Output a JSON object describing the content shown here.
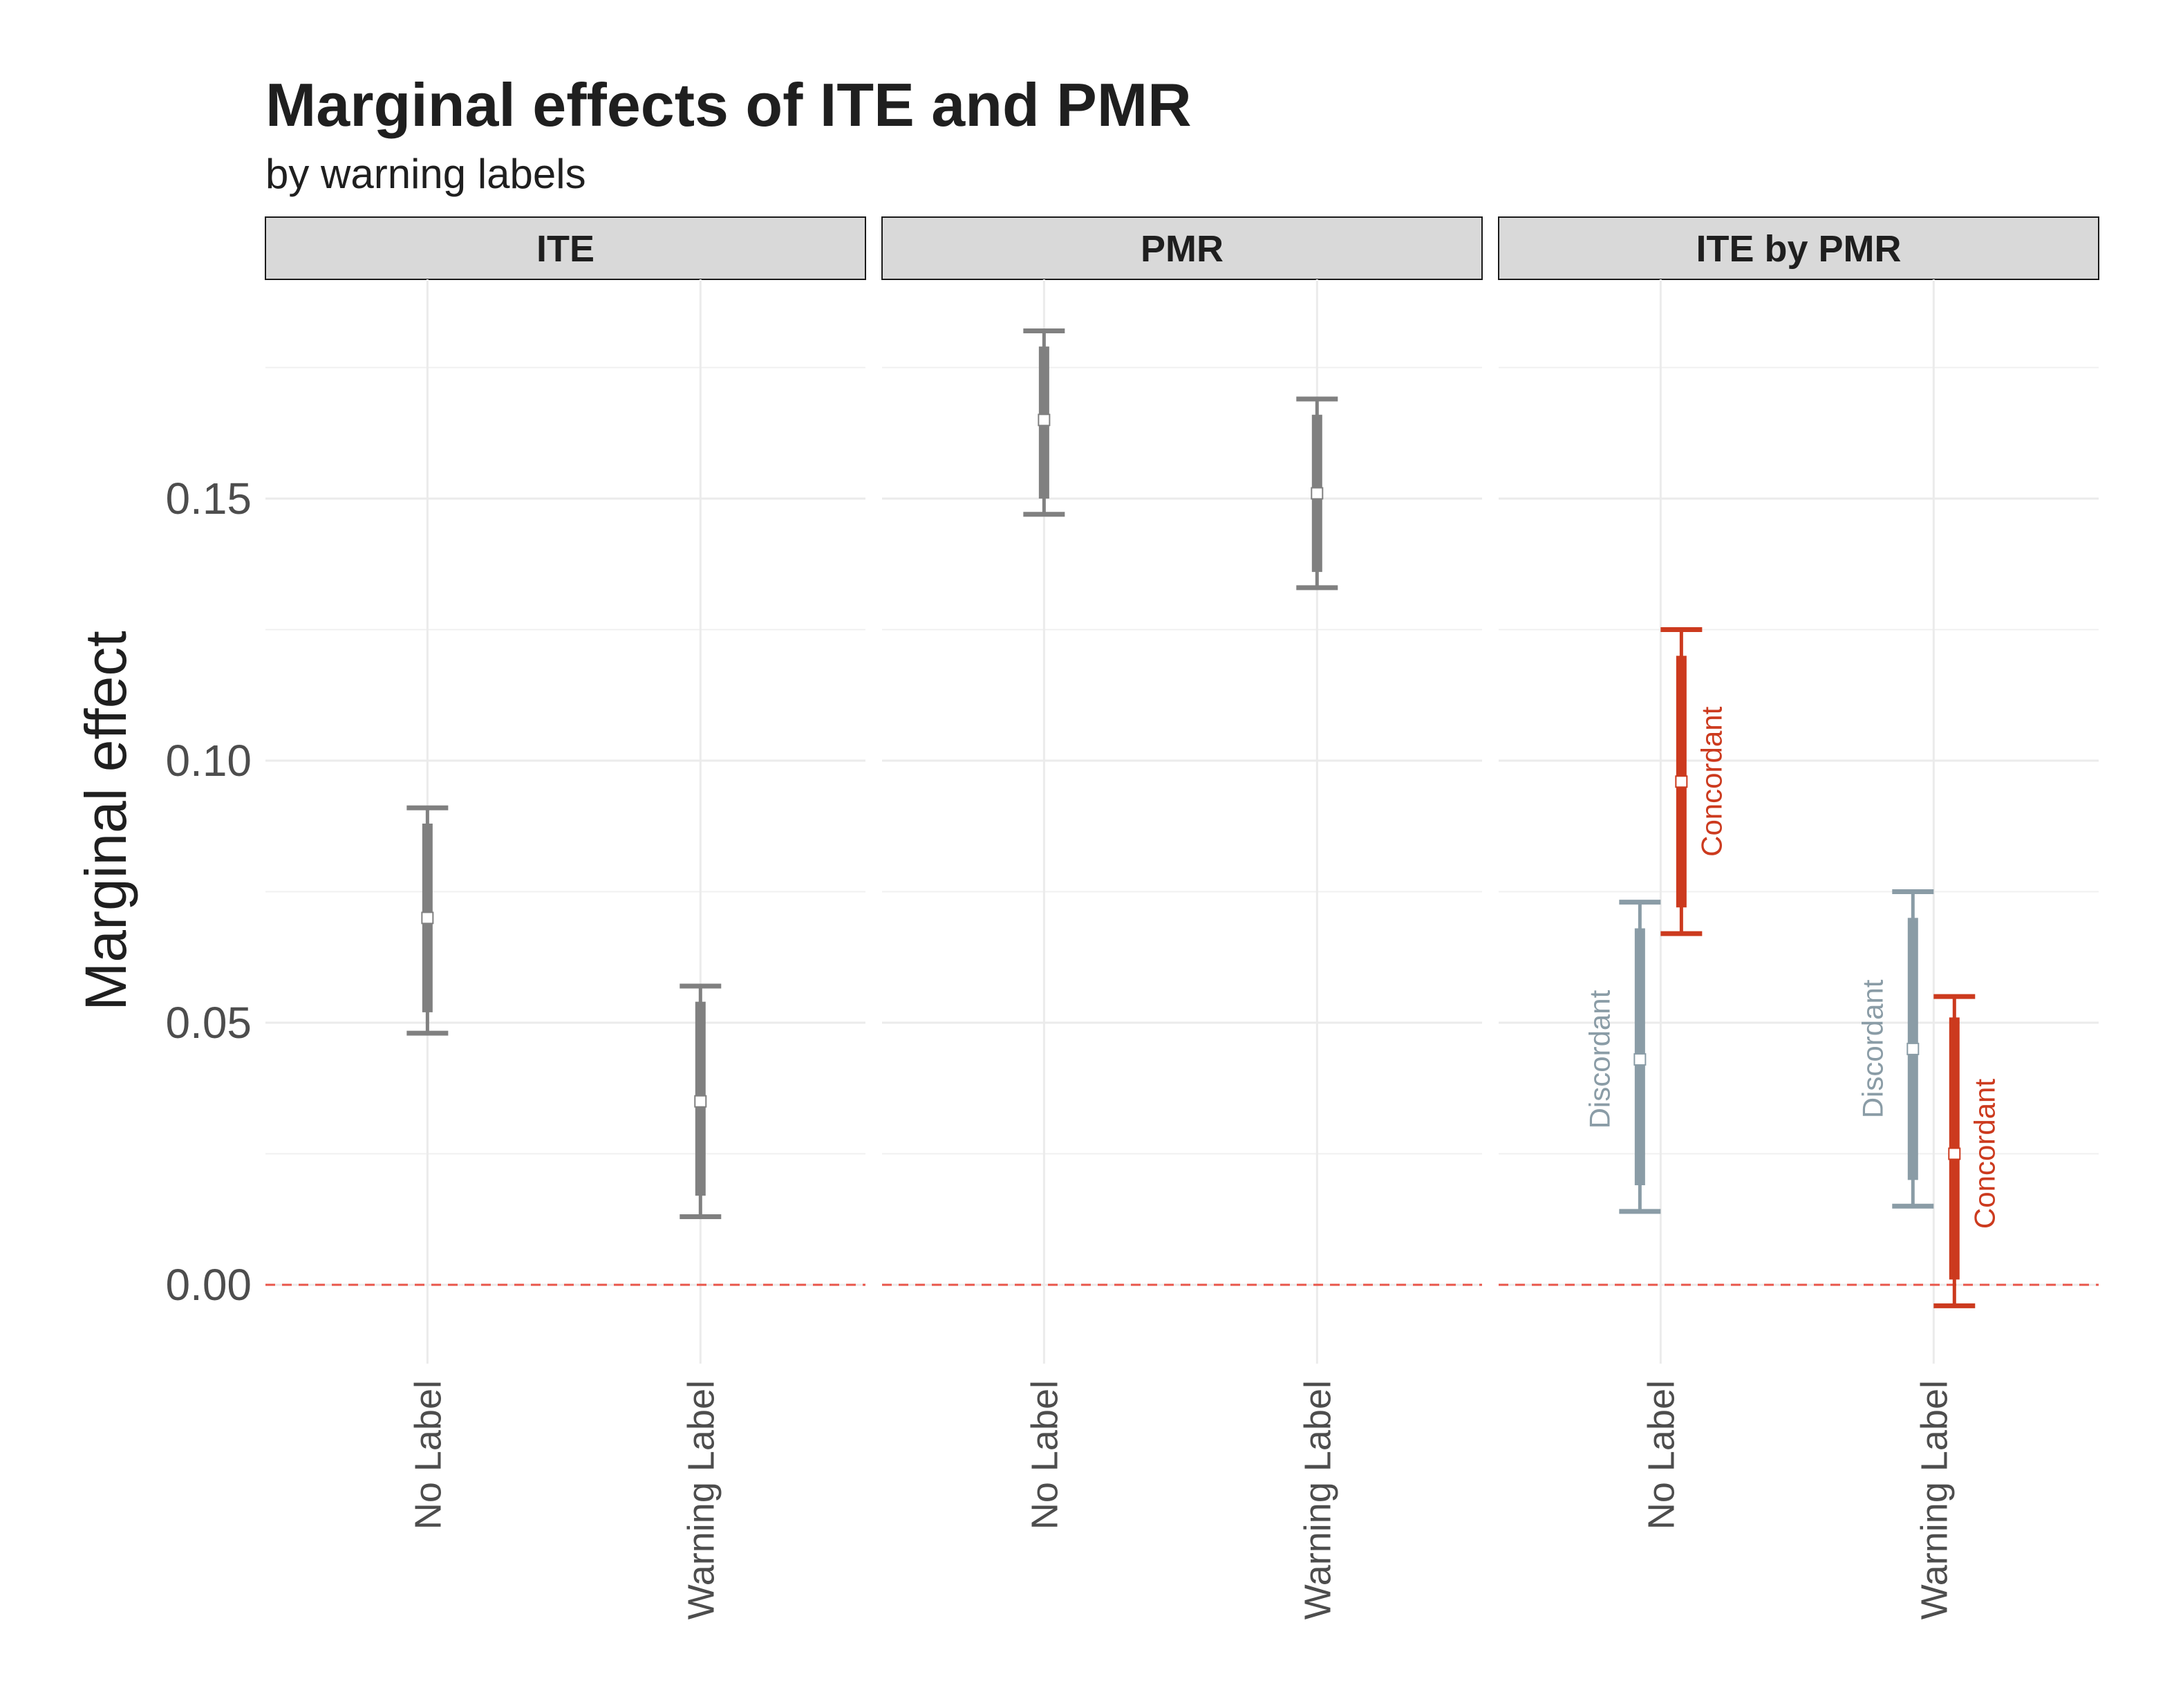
{
  "chart_data": {
    "type": "errorbar",
    "title": "Marginal effects of ITE and PMR",
    "subtitle": "by warning labels",
    "ylabel": "Marginal effect",
    "xlabel": "",
    "ylim": [
      -0.015,
      0.19
    ],
    "yticks": [
      0.0,
      0.05,
      0.1,
      0.15
    ],
    "ytick_labels": [
      "0.00",
      "0.05",
      "0.10",
      "0.15"
    ],
    "grid": true,
    "reference_line": {
      "y": 0,
      "style": "dashed",
      "color": "#e8564a"
    },
    "categories": [
      "No Label",
      "Warning Label"
    ],
    "colors": {
      "neutral": "#808080",
      "discordant": "#8a9ca6",
      "concordant": "#cc3a1e",
      "strip_fill": "#d9d9d9"
    },
    "panels": [
      {
        "label": "ITE",
        "series": [
          {
            "name": "",
            "color": "neutral",
            "offset": 0,
            "points": [
              {
                "category": "No Label",
                "estimate": 0.07,
                "inner_low": 0.052,
                "inner_high": 0.088,
                "outer_low": 0.048,
                "outer_high": 0.091
              },
              {
                "category": "Warning Label",
                "estimate": 0.035,
                "inner_low": 0.017,
                "inner_high": 0.054,
                "outer_low": 0.013,
                "outer_high": 0.057
              }
            ]
          }
        ]
      },
      {
        "label": "PMR",
        "series": [
          {
            "name": "",
            "color": "neutral",
            "offset": 0,
            "points": [
              {
                "category": "No Label",
                "estimate": 0.165,
                "inner_low": 0.15,
                "inner_high": 0.179,
                "outer_low": 0.147,
                "outer_high": 0.182
              },
              {
                "category": "Warning Label",
                "estimate": 0.151,
                "inner_low": 0.136,
                "inner_high": 0.166,
                "outer_low": 0.133,
                "outer_high": 0.169
              }
            ]
          }
        ]
      },
      {
        "label": "ITE by PMR",
        "series": [
          {
            "name": "Discordant",
            "color": "discordant",
            "offset": -1,
            "points": [
              {
                "category": "No Label",
                "estimate": 0.043,
                "inner_low": 0.019,
                "inner_high": 0.068,
                "outer_low": 0.014,
                "outer_high": 0.073
              },
              {
                "category": "Warning Label",
                "estimate": 0.045,
                "inner_low": 0.02,
                "inner_high": 0.07,
                "outer_low": 0.015,
                "outer_high": 0.075
              }
            ]
          },
          {
            "name": "Concordant",
            "color": "concordant",
            "offset": 1,
            "points": [
              {
                "category": "No Label",
                "estimate": 0.096,
                "inner_low": 0.072,
                "inner_high": 0.12,
                "outer_low": 0.067,
                "outer_high": 0.125
              },
              {
                "category": "Warning Label",
                "estimate": 0.025,
                "inner_low": 0.001,
                "inner_high": 0.051,
                "outer_low": -0.004,
                "outer_high": 0.055
              }
            ]
          }
        ]
      }
    ]
  }
}
